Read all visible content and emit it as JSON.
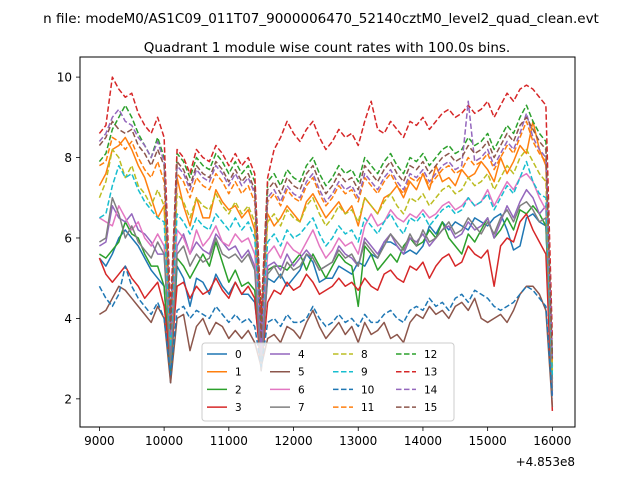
{
  "figure": {
    "suptitle": "n file: modeM0/AS1C09_011T07_9000006470_52140cztM0_level2_quad_clean.evt"
  },
  "chart_data": {
    "type": "line",
    "title": "Quadrant 1 module wise count rates with 100.0s bins.",
    "xlabel": "",
    "ylabel": "",
    "x_offset_label": "+4.853e8",
    "xlim": [
      8700,
      16350
    ],
    "ylim": [
      1.3,
      10.5
    ],
    "x_ticks": [
      9000,
      10000,
      11000,
      12000,
      13000,
      14000,
      15000,
      16000
    ],
    "y_ticks": [
      2,
      4,
      6,
      8,
      10
    ],
    "grid": false,
    "legend_position": "lower-center",
    "legend_columns": 4,
    "x_start": 9000,
    "x_step": 100,
    "series": [
      {
        "name": "0",
        "color": "#1f77b4",
        "dash": "solid",
        "values": [
          5.5,
          5.3,
          5.6,
          6.0,
          6.2,
          6.0,
          5.8,
          5.5,
          5.2,
          5.0,
          4.8,
          2.4,
          5.3,
          5.0,
          4.3,
          5.0,
          4.9,
          4.6,
          5.1,
          4.8,
          4.6,
          4.9,
          4.6,
          4.6,
          4.4,
          3.0,
          5.0,
          4.9,
          5.1,
          4.8,
          5.0,
          5.2,
          5.6,
          5.4,
          4.9,
          5.0,
          5.0,
          5.3,
          5.2,
          5.1,
          5.4,
          5.3,
          5.6,
          5.5,
          5.9,
          5.9,
          5.8,
          5.6,
          5.7,
          5.6,
          5.8,
          6.3,
          6.1,
          6.4,
          6.2,
          6.4,
          6.3,
          6.2,
          6.5,
          6.4,
          6.3,
          6.5,
          6.6,
          6.2,
          5.7,
          5.8,
          6.5,
          6.6,
          6.4,
          6.3,
          2.5
        ]
      },
      {
        "name": "1",
        "color": "#ff7f0e",
        "dash": "solid",
        "values": [
          7.3,
          7.6,
          8.2,
          8.3,
          8.5,
          8.2,
          7.8,
          7.5,
          7.0,
          6.5,
          6.8,
          3.2,
          7.5,
          6.8,
          6.3,
          7.0,
          6.5,
          6.5,
          7.2,
          6.9,
          6.7,
          6.8,
          6.5,
          6.7,
          6.2,
          3.3,
          6.6,
          6.3,
          6.5,
          6.8,
          6.6,
          6.4,
          6.9,
          7.1,
          6.8,
          6.5,
          6.7,
          6.9,
          6.6,
          6.8,
          6.3,
          7.0,
          6.8,
          6.6,
          7.0,
          7.1,
          7.3,
          7.0,
          7.4,
          7.2,
          7.6,
          7.2,
          7.8,
          7.4,
          7.5,
          7.3,
          7.7,
          7.5,
          7.6,
          7.9,
          7.7,
          7.4,
          8.0,
          7.6,
          7.9,
          8.3,
          8.1,
          8.9,
          8.2,
          7.8,
          2.8
        ]
      },
      {
        "name": "2",
        "color": "#2ca02c",
        "dash": "solid",
        "values": [
          5.6,
          5.5,
          5.7,
          5.9,
          6.4,
          6.1,
          6.0,
          5.6,
          5.3,
          5.3,
          4.8,
          2.5,
          5.5,
          5.3,
          5.0,
          5.3,
          5.6,
          5.3,
          5.9,
          5.4,
          4.9,
          5.2,
          4.8,
          4.9,
          4.7,
          3.2,
          5.2,
          5.3,
          5.3,
          5.2,
          5.4,
          5.6,
          5.2,
          5.6,
          5.3,
          5.0,
          5.3,
          5.6,
          5.4,
          5.3,
          4.3,
          5.8,
          5.6,
          5.2,
          5.4,
          5.6,
          5.4,
          5.8,
          6.0,
          5.8,
          5.9,
          6.2,
          6.0,
          6.4,
          6.0,
          5.8,
          5.6,
          6.1,
          5.9,
          6.2,
          6.5,
          6.0,
          6.2,
          6.5,
          6.2,
          6.7,
          6.6,
          6.8,
          6.6,
          6.3,
          2.4
        ]
      },
      {
        "name": "3",
        "color": "#d62728",
        "dash": "solid",
        "values": [
          5.5,
          5.1,
          4.9,
          5.1,
          5.3,
          5.0,
          4.8,
          4.5,
          4.7,
          4.9,
          4.3,
          2.9,
          4.8,
          4.9,
          4.5,
          4.8,
          4.6,
          4.7,
          5.0,
          4.7,
          4.5,
          4.9,
          4.6,
          4.8,
          4.5,
          2.7,
          4.4,
          4.7,
          4.6,
          4.9,
          4.7,
          4.8,
          5.1,
          4.9,
          4.6,
          4.7,
          4.8,
          5.0,
          4.8,
          4.9,
          4.7,
          5.0,
          4.8,
          4.7,
          5.1,
          5.2,
          5.0,
          4.9,
          5.3,
          5.2,
          5.4,
          5.0,
          5.3,
          5.5,
          5.6,
          5.3,
          5.4,
          5.8,
          5.6,
          5.5,
          5.7,
          4.8,
          5.8,
          6.0,
          5.9,
          6.4,
          6.6,
          6.2,
          5.9,
          5.6,
          1.7
        ]
      },
      {
        "name": "4",
        "color": "#9467bd",
        "dash": "solid",
        "values": [
          5.8,
          5.9,
          6.8,
          6.5,
          6.4,
          6.6,
          6.2,
          6.1,
          5.9,
          5.6,
          5.6,
          3.0,
          5.8,
          6.1,
          5.6,
          5.9,
          5.7,
          5.6,
          6.1,
          5.9,
          5.7,
          5.8,
          5.5,
          5.7,
          5.3,
          3.1,
          5.3,
          5.4,
          5.2,
          5.6,
          5.3,
          5.5,
          5.7,
          5.5,
          5.2,
          5.3,
          5.4,
          5.8,
          5.6,
          5.5,
          5.3,
          6.0,
          5.8,
          5.6,
          5.9,
          6.1,
          5.8,
          5.6,
          6.0,
          5.9,
          6.1,
          5.8,
          6.0,
          6.2,
          6.3,
          6.0,
          6.1,
          6.4,
          6.2,
          6.3,
          6.5,
          6.0,
          6.4,
          6.8,
          6.5,
          6.9,
          7.2,
          7.0,
          6.6,
          6.8,
          2.1
        ]
      },
      {
        "name": "5",
        "color": "#8c564b",
        "dash": "solid",
        "values": [
          4.1,
          4.2,
          4.5,
          4.8,
          4.7,
          4.5,
          4.3,
          4.1,
          3.9,
          4.3,
          4.0,
          2.4,
          4.0,
          4.1,
          3.2,
          3.8,
          4.0,
          3.6,
          3.9,
          3.8,
          3.5,
          3.7,
          3.5,
          3.7,
          3.4,
          2.8,
          3.5,
          3.6,
          3.4,
          3.8,
          3.7,
          3.5,
          3.9,
          4.2,
          3.8,
          3.5,
          3.7,
          3.9,
          3.6,
          3.8,
          3.4,
          3.9,
          3.6,
          3.7,
          3.9,
          3.5,
          3.6,
          3.4,
          3.9,
          4.1,
          4.0,
          4.3,
          4.1,
          4.2,
          4.0,
          4.3,
          4.4,
          4.2,
          4.5,
          4.0,
          3.9,
          4.0,
          4.1,
          3.9,
          4.2,
          4.6,
          4.8,
          4.8,
          4.6,
          4.2,
          1.8
        ]
      },
      {
        "name": "6",
        "color": "#e377c2",
        "dash": "solid",
        "values": [
          6.5,
          6.4,
          6.3,
          6.8,
          6.5,
          6.2,
          6.4,
          6.0,
          5.8,
          6.1,
          5.8,
          3.4,
          6.2,
          6.0,
          5.6,
          6.2,
          5.8,
          6.0,
          6.3,
          5.9,
          5.8,
          6.1,
          5.9,
          6.0,
          5.6,
          3.6,
          5.6,
          5.8,
          5.5,
          5.9,
          5.7,
          5.6,
          5.9,
          6.2,
          5.8,
          5.5,
          5.7,
          6.0,
          5.8,
          5.9,
          5.6,
          6.3,
          6.6,
          6.3,
          6.4,
          6.7,
          6.5,
          6.4,
          6.6,
          6.5,
          6.7,
          6.5,
          6.6,
          6.8,
          6.9,
          6.7,
          6.8,
          7.0,
          6.8,
          6.9,
          7.2,
          6.8,
          7.1,
          7.4,
          7.2,
          7.5,
          7.6,
          7.4,
          7.0,
          6.7,
          2.3
        ]
      },
      {
        "name": "7",
        "color": "#7f7f7f",
        "dash": "solid",
        "values": [
          5.9,
          6.0,
          7.0,
          6.6,
          6.0,
          6.3,
          5.9,
          5.7,
          5.5,
          5.9,
          5.6,
          2.8,
          5.6,
          5.8,
          5.3,
          5.6,
          5.4,
          5.5,
          6.0,
          5.6,
          5.5,
          5.6,
          5.4,
          5.6,
          5.2,
          2.7,
          5.1,
          5.3,
          5.0,
          5.4,
          5.2,
          5.3,
          5.6,
          5.5,
          5.2,
          5.3,
          5.4,
          5.7,
          5.5,
          5.6,
          5.3,
          5.9,
          5.7,
          5.5,
          5.8,
          6.1,
          5.9,
          5.7,
          6.1,
          5.8,
          6.2,
          5.9,
          6.0,
          6.2,
          6.4,
          6.1,
          6.2,
          6.5,
          6.3,
          6.1,
          6.4,
          6.1,
          6.5,
          6.7,
          6.4,
          6.8,
          6.9,
          6.7,
          6.4,
          6.5,
          2.2
        ]
      },
      {
        "name": "8",
        "color": "#bcbd22",
        "dash": "dashed",
        "values": [
          7.0,
          7.4,
          8.2,
          8.0,
          7.5,
          7.8,
          7.3,
          7.1,
          6.8,
          7.2,
          6.8,
          3.5,
          7.1,
          6.9,
          6.5,
          7.0,
          6.8,
          6.7,
          7.1,
          6.8,
          6.6,
          6.9,
          6.6,
          6.8,
          6.4,
          3.7,
          6.4,
          6.6,
          6.3,
          6.7,
          6.5,
          6.4,
          6.8,
          7.0,
          6.6,
          6.3,
          6.5,
          6.8,
          6.6,
          6.7,
          6.4,
          7.0,
          6.8,
          6.6,
          6.9,
          7.1,
          6.8,
          6.6,
          7.0,
          6.9,
          7.1,
          6.8,
          7.0,
          7.2,
          7.3,
          7.1,
          7.2,
          7.5,
          7.3,
          7.4,
          7.6,
          7.2,
          7.5,
          7.8,
          7.6,
          8.0,
          8.2,
          7.9,
          7.6,
          7.4,
          2.7
        ]
      },
      {
        "name": "9",
        "color": "#17becf",
        "dash": "dashed",
        "values": [
          6.5,
          6.6,
          7.3,
          7.8,
          7.5,
          7.6,
          7.2,
          6.9,
          6.7,
          6.5,
          6.4,
          3.3,
          6.6,
          6.4,
          6.1,
          6.5,
          6.3,
          6.2,
          6.6,
          6.4,
          6.2,
          6.5,
          6.2,
          6.4,
          6.0,
          3.5,
          5.9,
          6.1,
          5.8,
          6.2,
          6.0,
          6.1,
          6.3,
          6.5,
          6.1,
          5.8,
          6.0,
          6.3,
          6.1,
          6.2,
          5.9,
          6.5,
          6.3,
          6.1,
          6.4,
          6.6,
          6.3,
          6.1,
          6.5,
          6.4,
          6.6,
          6.3,
          6.5,
          6.7,
          6.8,
          6.6,
          6.7,
          7.0,
          6.8,
          6.9,
          7.1,
          6.7,
          7.0,
          7.3,
          7.1,
          7.5,
          7.9,
          7.4,
          7.1,
          7.0,
          2.6
        ]
      },
      {
        "name": "10",
        "color": "#1f77b4",
        "dash": "dashed",
        "values": [
          4.8,
          4.5,
          4.3,
          4.6,
          5.3,
          4.8,
          4.5,
          4.3,
          4.1,
          4.4,
          4.0,
          2.6,
          4.2,
          4.3,
          4.0,
          4.2,
          4.1,
          4.0,
          4.3,
          4.1,
          3.9,
          4.1,
          3.9,
          4.0,
          3.8,
          2.8,
          3.9,
          4.0,
          3.8,
          4.1,
          3.9,
          3.9,
          4.0,
          4.3,
          4.0,
          3.8,
          3.9,
          4.1,
          3.9,
          4.0,
          3.8,
          4.1,
          3.9,
          3.9,
          4.1,
          4.2,
          4.0,
          3.9,
          4.2,
          4.3,
          4.2,
          4.5,
          4.3,
          4.4,
          4.2,
          4.5,
          4.6,
          4.4,
          4.7,
          4.6,
          4.5,
          4.3,
          4.2,
          4.3,
          4.4,
          4.6,
          4.8,
          4.7,
          4.5,
          4.3,
          2.0
        ]
      },
      {
        "name": "11",
        "color": "#ff7f0e",
        "dash": "dashed",
        "values": [
          7.8,
          7.9,
          8.5,
          8.4,
          8.2,
          8.4,
          8.0,
          7.7,
          7.5,
          7.9,
          7.4,
          3.7,
          7.6,
          7.4,
          7.0,
          7.5,
          7.3,
          7.2,
          7.6,
          7.4,
          7.1,
          7.4,
          7.1,
          7.3,
          6.9,
          3.8,
          6.9,
          7.1,
          6.8,
          7.2,
          7.0,
          6.9,
          7.3,
          7.5,
          7.1,
          6.8,
          7.0,
          7.3,
          7.1,
          7.2,
          6.9,
          7.5,
          7.3,
          7.1,
          7.4,
          7.6,
          7.3,
          7.1,
          7.5,
          7.4,
          7.6,
          7.3,
          7.5,
          7.7,
          7.8,
          7.6,
          7.7,
          8.0,
          7.8,
          7.9,
          8.1,
          7.7,
          8.0,
          8.3,
          8.1,
          8.5,
          8.9,
          8.4,
          8.1,
          7.9,
          2.9
        ]
      },
      {
        "name": "12",
        "color": "#2ca02c",
        "dash": "dashed",
        "values": [
          7.9,
          8.1,
          8.7,
          9.0,
          9.3,
          9.0,
          8.6,
          8.3,
          8.0,
          8.5,
          8.0,
          3.9,
          8.1,
          7.9,
          7.5,
          8.0,
          7.8,
          7.7,
          8.1,
          7.9,
          7.6,
          7.9,
          7.6,
          7.8,
          7.4,
          4.0,
          7.4,
          7.6,
          7.3,
          7.7,
          7.5,
          7.4,
          7.8,
          8.0,
          7.6,
          7.3,
          7.5,
          7.8,
          7.6,
          7.7,
          7.4,
          8.0,
          7.8,
          7.6,
          7.9,
          8.1,
          7.8,
          7.6,
          8.0,
          7.9,
          8.1,
          7.8,
          8.0,
          8.2,
          8.3,
          8.1,
          8.2,
          8.5,
          8.3,
          8.4,
          8.6,
          8.2,
          8.5,
          8.8,
          8.6,
          9.0,
          9.3,
          8.9,
          8.6,
          8.4,
          3.1
        ]
      },
      {
        "name": "13",
        "color": "#d62728",
        "dash": "dashed",
        "values": [
          8.6,
          8.8,
          10.0,
          9.7,
          9.5,
          9.6,
          9.1,
          8.8,
          8.6,
          9.0,
          8.5,
          4.2,
          8.2,
          8.0,
          7.6,
          8.2,
          8.0,
          7.9,
          8.3,
          8.1,
          7.8,
          8.1,
          7.8,
          8.0,
          7.6,
          4.1,
          7.5,
          8.2,
          8.5,
          8.9,
          8.6,
          8.4,
          8.7,
          8.9,
          8.5,
          8.2,
          8.4,
          8.7,
          8.5,
          8.6,
          8.3,
          8.9,
          9.4,
          8.7,
          8.6,
          8.9,
          8.7,
          8.5,
          8.9,
          8.8,
          9.0,
          8.7,
          8.9,
          9.1,
          9.2,
          9.0,
          9.1,
          9.3,
          9.1,
          9.2,
          9.4,
          9.0,
          9.3,
          9.6,
          9.4,
          9.7,
          9.8,
          9.7,
          9.5,
          9.3,
          3.5
        ]
      },
      {
        "name": "14",
        "color": "#9467bd",
        "dash": "dashed",
        "values": [
          8.4,
          8.6,
          9.0,
          9.2,
          8.9,
          8.8,
          8.5,
          8.3,
          8.0,
          8.4,
          7.9,
          3.6,
          7.8,
          7.6,
          7.2,
          7.7,
          7.5,
          7.4,
          7.8,
          7.6,
          7.3,
          7.6,
          7.3,
          7.5,
          7.1,
          3.4,
          7.0,
          7.2,
          6.9,
          7.3,
          7.1,
          7.0,
          7.4,
          7.6,
          7.2,
          6.9,
          7.1,
          7.4,
          7.2,
          7.3,
          7.0,
          7.6,
          7.4,
          7.2,
          7.5,
          7.7,
          7.4,
          7.2,
          7.6,
          7.5,
          7.7,
          7.4,
          7.6,
          7.8,
          7.9,
          7.7,
          7.8,
          9.4,
          7.9,
          8.0,
          8.2,
          7.8,
          8.1,
          8.4,
          8.2,
          8.6,
          9.1,
          8.5,
          8.2,
          8.0,
          3.0
        ]
      },
      {
        "name": "15",
        "color": "#8c564b",
        "dash": "dashed",
        "values": [
          8.3,
          8.5,
          8.9,
          8.7,
          8.6,
          8.7,
          8.3,
          8.1,
          7.8,
          8.2,
          7.8,
          3.7,
          7.9,
          7.7,
          7.3,
          7.8,
          7.6,
          7.5,
          7.9,
          7.7,
          7.4,
          7.7,
          7.4,
          7.6,
          7.2,
          3.5,
          7.2,
          7.4,
          7.1,
          7.5,
          7.3,
          7.2,
          7.6,
          7.8,
          7.4,
          7.1,
          7.3,
          7.6,
          7.4,
          7.5,
          7.2,
          7.8,
          7.6,
          7.4,
          7.7,
          7.9,
          7.6,
          7.4,
          7.8,
          7.7,
          7.9,
          7.6,
          7.8,
          8.0,
          8.1,
          7.9,
          8.0,
          8.3,
          8.1,
          8.2,
          8.4,
          8.0,
          8.3,
          8.6,
          8.4,
          8.8,
          9.0,
          8.7,
          8.4,
          8.2,
          3.0
        ]
      }
    ]
  }
}
